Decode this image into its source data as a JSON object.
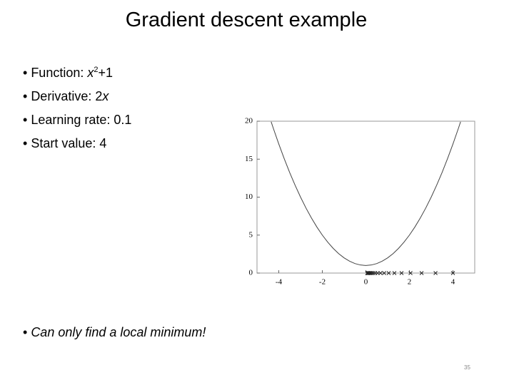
{
  "title": "Gradient descent example",
  "bullets": [
    [
      "Function: ",
      "x",
      "2",
      "+1"
    ],
    [
      "Derivative: 2",
      "x"
    ],
    [
      "Learning rate: 0.1"
    ],
    [
      "Start value: 4"
    ]
  ],
  "note": "Can only find a local minimum!",
  "page_number": "35",
  "chart_data": {
    "type": "line",
    "xlim": [
      -5,
      5
    ],
    "ylim": [
      0,
      20
    ],
    "xticks": [
      -4,
      -2,
      0,
      2,
      4
    ],
    "yticks": [
      0,
      5,
      10,
      15,
      20
    ],
    "grid": false,
    "series": [
      {
        "style": "line",
        "color": "#444444",
        "x": [
          -4.35,
          -4.25,
          -4,
          -3.75,
          -3.5,
          -3.25,
          -3,
          -2.75,
          -2.5,
          -2.25,
          -2,
          -1.75,
          -1.5,
          -1.25,
          -1,
          -0.75,
          -0.5,
          -0.25,
          0,
          0.25,
          0.5,
          0.75,
          1,
          1.25,
          1.5,
          1.75,
          2,
          2.25,
          2.5,
          2.75,
          3,
          3.25,
          3.5,
          3.75,
          4,
          4.25,
          4.35
        ],
        "values": [
          19.9225,
          19.0625,
          17,
          15.0625,
          13.25,
          11.5625,
          10,
          8.5625,
          7.25,
          6.0625,
          5,
          4.0625,
          3.25,
          2.5625,
          2,
          1.5625,
          1.25,
          1.0625,
          1,
          1.0625,
          1.25,
          1.5625,
          2,
          2.5625,
          3.25,
          4.0625,
          5,
          6.0625,
          7.25,
          8.5625,
          10,
          11.5625,
          13.25,
          15.0625,
          17,
          19.0625,
          19.9225
        ]
      },
      {
        "style": "x-marker",
        "color": "#222222",
        "x": [
          4,
          3.2,
          2.56,
          2.05,
          1.64,
          1.31,
          1.05,
          0.84,
          0.67,
          0.54,
          0.43,
          0.34,
          0.27,
          0.22,
          0.18,
          0.14,
          0.11,
          0.09,
          0.07,
          0.06
        ],
        "values": [
          0,
          0,
          0,
          0,
          0,
          0,
          0,
          0,
          0,
          0,
          0,
          0,
          0,
          0,
          0,
          0,
          0,
          0,
          0,
          0
        ]
      }
    ]
  }
}
